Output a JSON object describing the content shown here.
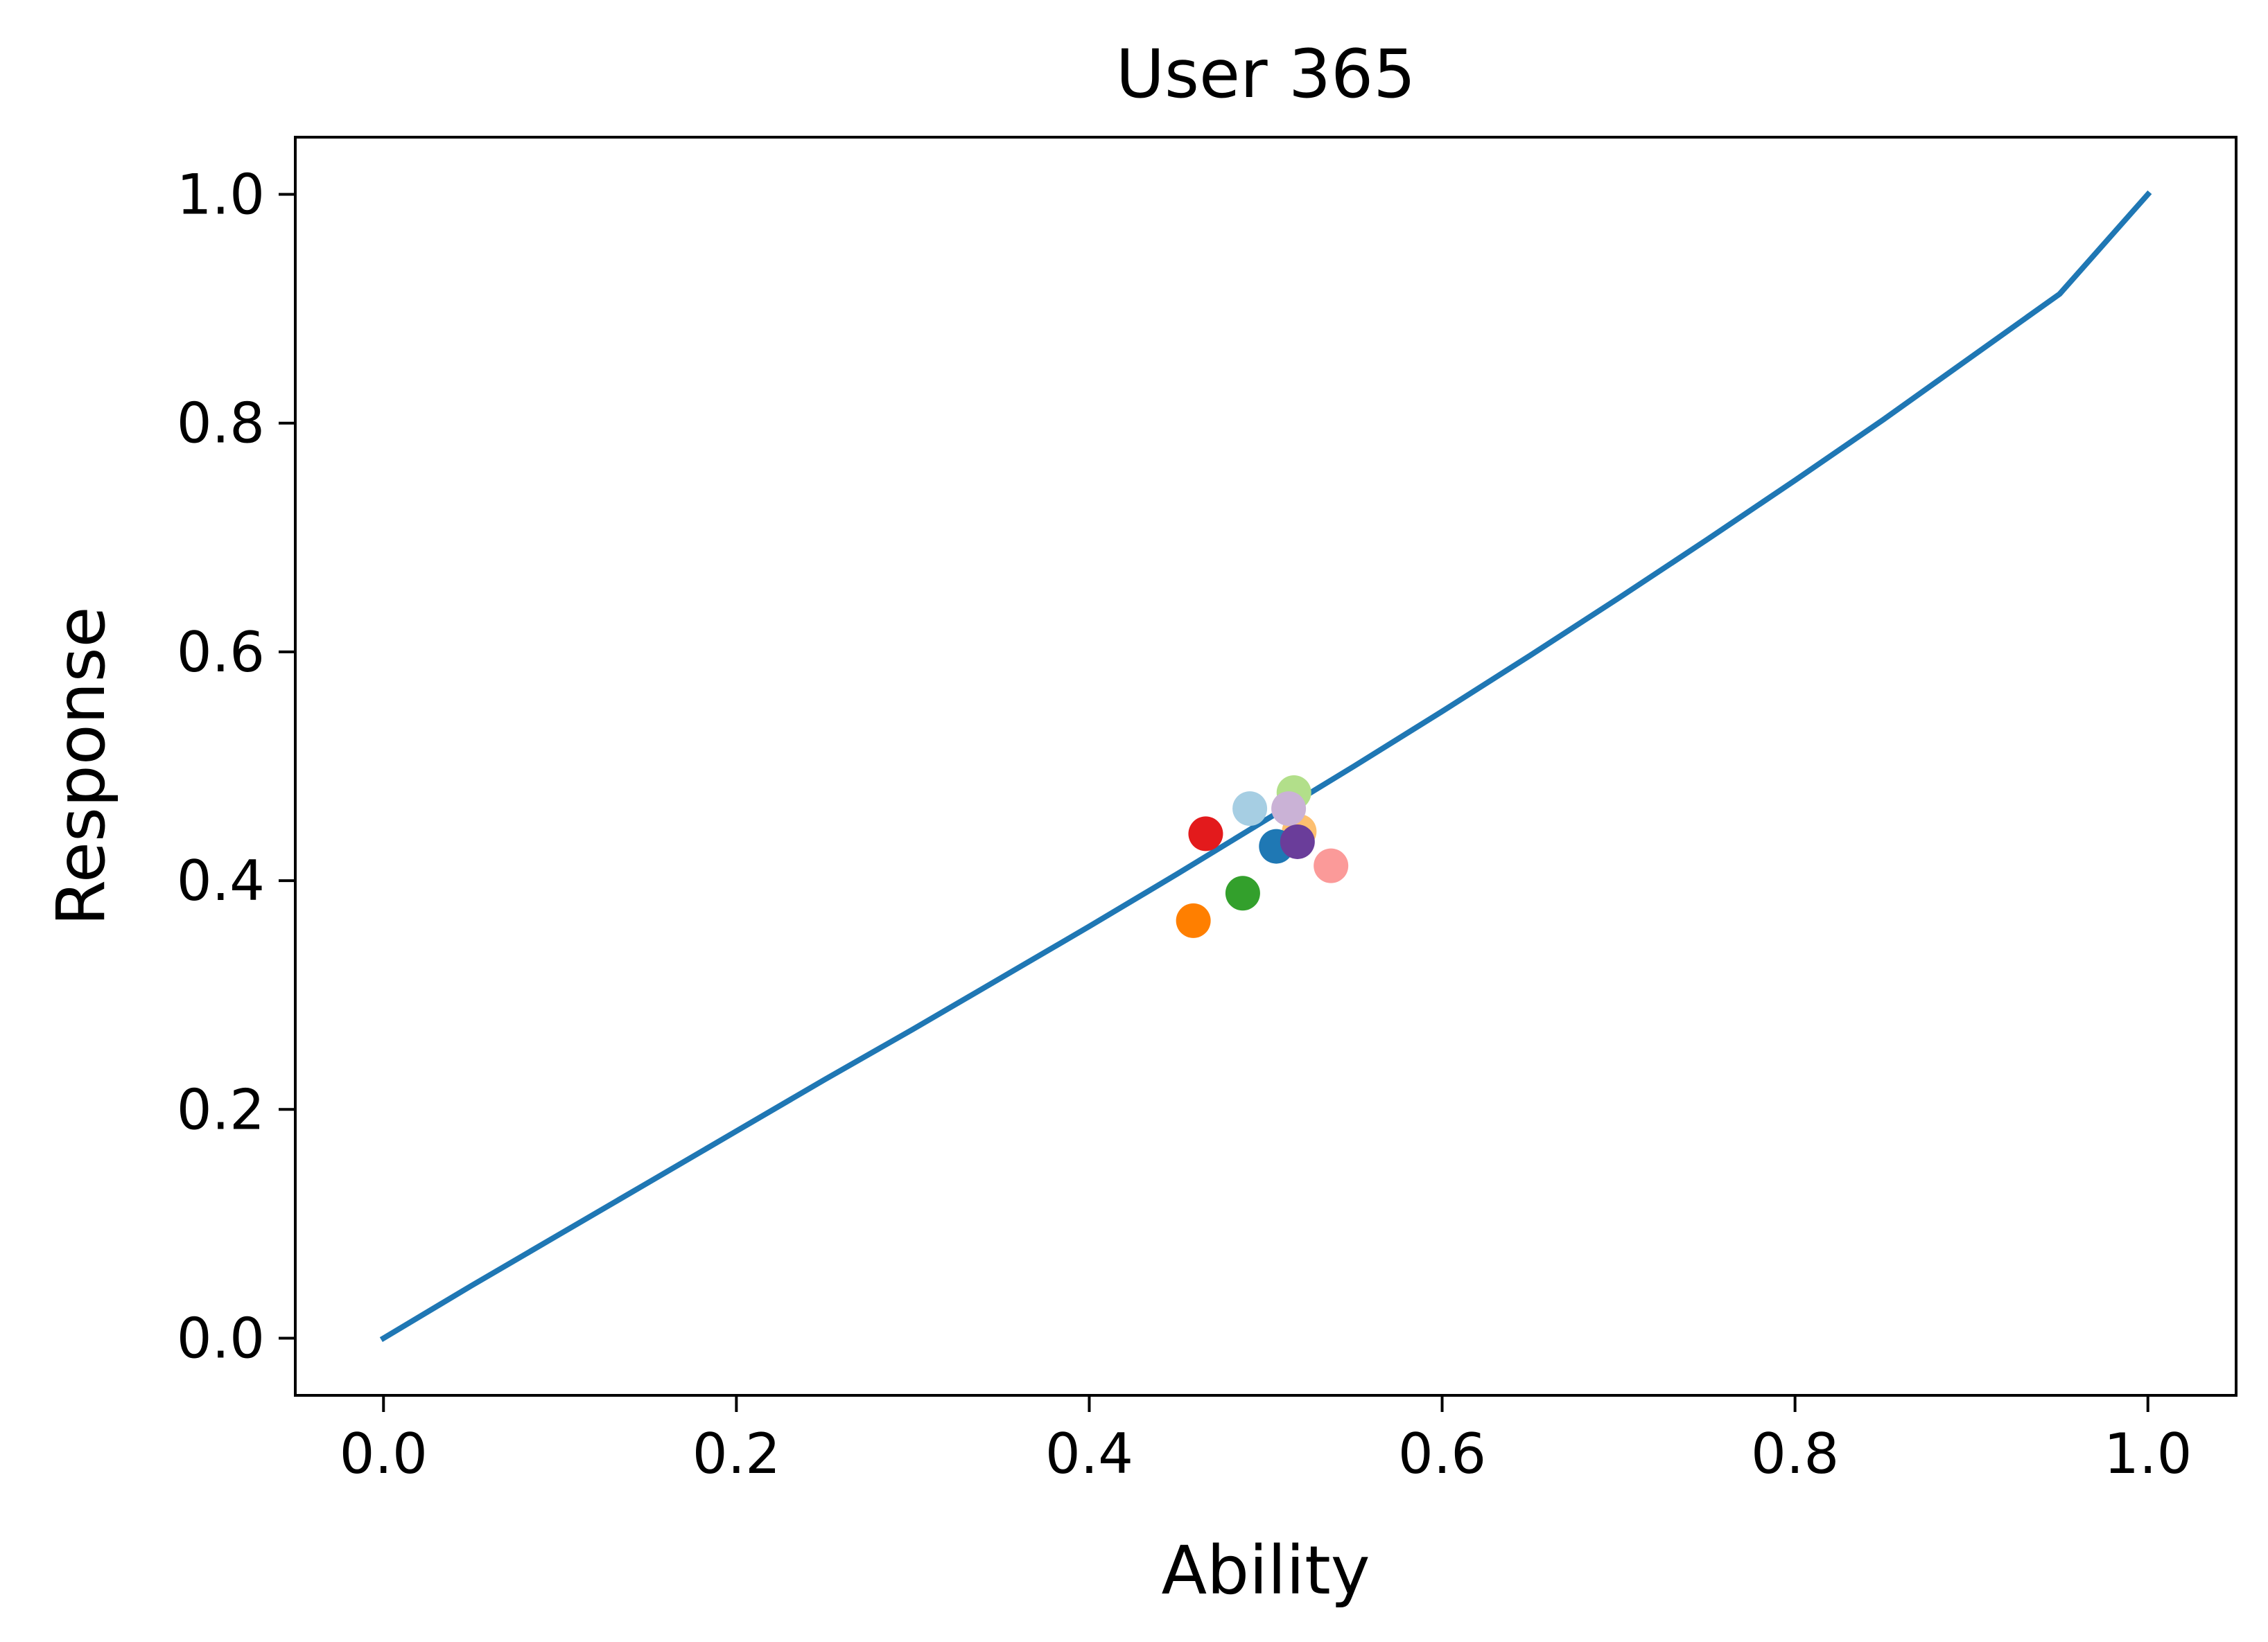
{
  "chart_data": {
    "type": "scatter",
    "title": "User 365",
    "xlabel": "Ability",
    "ylabel": "Response",
    "xlim": [
      -0.05,
      1.05
    ],
    "ylim": [
      -0.05,
      1.05
    ],
    "xticks": [
      0.0,
      0.2,
      0.4,
      0.6,
      0.8,
      1.0
    ],
    "yticks": [
      0.0,
      0.2,
      0.4,
      0.6,
      0.8,
      1.0
    ],
    "xtick_labels": [
      "0.0",
      "0.2",
      "0.4",
      "0.6",
      "0.8",
      "1.0"
    ],
    "ytick_labels": [
      "0.0",
      "0.2",
      "0.4",
      "0.6",
      "0.8",
      "1.0"
    ],
    "grid": false,
    "curve": {
      "color": "#1f77b4",
      "x": [
        0.0,
        0.05,
        0.1,
        0.15,
        0.2,
        0.25,
        0.3,
        0.35,
        0.4,
        0.45,
        0.5,
        0.55,
        0.6,
        0.65,
        0.7,
        0.75,
        0.8,
        0.85,
        0.9,
        0.95,
        1.0
      ],
      "y": [
        0.0,
        0.046,
        0.091,
        0.136,
        0.181,
        0.226,
        0.27,
        0.315,
        0.36,
        0.406,
        0.453,
        0.5,
        0.548,
        0.597,
        0.647,
        0.698,
        0.75,
        0.803,
        0.858,
        0.913,
        1.0
      ]
    },
    "points": [
      {
        "x": 0.466,
        "y": 0.441,
        "color": "#e31a1c"
      },
      {
        "x": 0.459,
        "y": 0.365,
        "color": "#ff7f00"
      },
      {
        "x": 0.487,
        "y": 0.389,
        "color": "#33a02c"
      },
      {
        "x": 0.491,
        "y": 0.463,
        "color": "#a6cee3"
      },
      {
        "x": 0.516,
        "y": 0.477,
        "color": "#b2df8a"
      },
      {
        "x": 0.519,
        "y": 0.443,
        "color": "#fdbf6f"
      },
      {
        "x": 0.513,
        "y": 0.463,
        "color": "#cab2d6"
      },
      {
        "x": 0.506,
        "y": 0.43,
        "color": "#1f78b4"
      },
      {
        "x": 0.537,
        "y": 0.413,
        "color": "#fb9a99"
      },
      {
        "x": 0.518,
        "y": 0.434,
        "color": "#6a3d9a"
      }
    ]
  }
}
